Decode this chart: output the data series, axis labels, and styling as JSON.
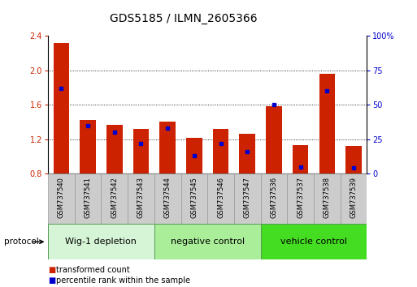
{
  "title": "GDS5185 / ILMN_2605366",
  "samples": [
    "GSM737540",
    "GSM737541",
    "GSM737542",
    "GSM737543",
    "GSM737544",
    "GSM737545",
    "GSM737546",
    "GSM737547",
    "GSM737536",
    "GSM737537",
    "GSM737538",
    "GSM737539"
  ],
  "transformed_count": [
    2.32,
    1.42,
    1.37,
    1.32,
    1.4,
    1.22,
    1.32,
    1.26,
    1.58,
    1.13,
    1.96,
    1.12
  ],
  "percentile_rank": [
    62,
    35,
    30,
    22,
    33,
    13,
    22,
    16,
    50,
    5,
    60,
    4
  ],
  "bar_bottom": 0.8,
  "ylim_left": [
    0.8,
    2.4
  ],
  "ylim_right": [
    0,
    100
  ],
  "yticks_left": [
    0.8,
    1.2,
    1.6,
    2.0,
    2.4
  ],
  "yticks_right": [
    0,
    25,
    50,
    75,
    100
  ],
  "groups": [
    {
      "label": "Wig-1 depletion",
      "start": 0,
      "end": 4,
      "color": "#d6f5d6"
    },
    {
      "label": "negative control",
      "start": 4,
      "end": 8,
      "color": "#aaee99"
    },
    {
      "label": "vehicle control",
      "start": 8,
      "end": 12,
      "color": "#44dd22"
    }
  ],
  "bar_color_red": "#cc2200",
  "bar_color_blue": "#0000cc",
  "protocol_label": "protocol",
  "legend_red": "transformed count",
  "legend_blue": "percentile rank within the sample",
  "bar_width": 0.6,
  "title_fontsize": 10,
  "tick_fontsize": 7,
  "label_fontsize": 7,
  "group_label_fontsize": 8,
  "sample_label_fontsize": 6
}
